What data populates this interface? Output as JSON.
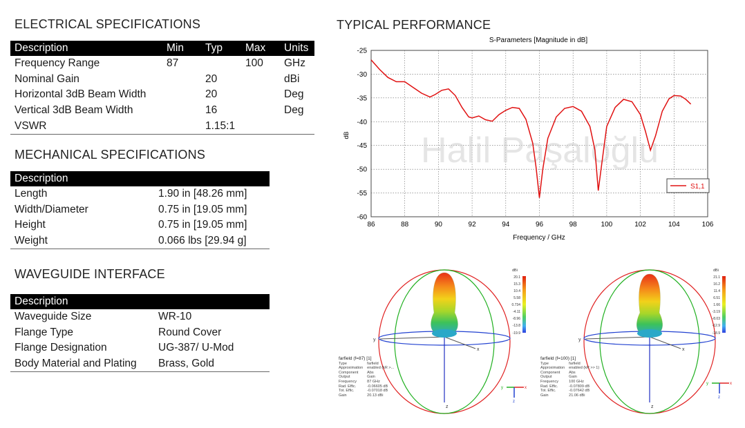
{
  "electrical": {
    "title": "ELECTRICAL SPECIFICATIONS",
    "headers": [
      "Description",
      "Min",
      "Typ",
      "Max",
      "Units"
    ],
    "rows": [
      [
        "Frequency Range",
        "87",
        "",
        "100",
        "GHz"
      ],
      [
        "Nominal Gain",
        "",
        "20",
        "",
        "dBi"
      ],
      [
        "Horizontal 3dB Beam Width",
        "",
        "20",
        "",
        "Deg"
      ],
      [
        "Vertical 3dB Beam Width",
        "",
        "16",
        "",
        "Deg"
      ],
      [
        "VSWR",
        "",
        "1.15:1",
        "",
        ""
      ]
    ]
  },
  "mechanical": {
    "title": "MECHANICAL SPECIFICATIONS",
    "header": "Description",
    "rows": [
      [
        "Length",
        "1.90 in [48.26 mm]"
      ],
      [
        "Width/Diameter",
        "0.75 in [19.05 mm]"
      ],
      [
        "Height",
        "0.75 in [19.05 mm]"
      ],
      [
        "Weight",
        "0.066 lbs [29.94 g]"
      ]
    ]
  },
  "waveguide": {
    "title": "WAVEGUIDE INTERFACE",
    "header": "Description",
    "rows": [
      [
        "Waveguide Size",
        "WR-10"
      ],
      [
        "Flange Type",
        "Round Cover"
      ],
      [
        "Flange Designation",
        "UG-387/ U-Mod"
      ],
      [
        "Body Material and Plating",
        "Brass, Gold"
      ]
    ]
  },
  "performance": {
    "title": "TYPICAL PERFORMANCE",
    "watermark": "Halil Paşaloğlu"
  },
  "chart_data": {
    "type": "line",
    "title": "S-Parameters [Magnitude in dB]",
    "xlabel": "Frequency / GHz",
    "ylabel": "dB",
    "xlim": [
      86,
      106
    ],
    "ylim": [
      -60,
      -25
    ],
    "xticks": [
      "86",
      "88",
      "90",
      "92",
      "94",
      "96",
      "98",
      "100",
      "102",
      "104",
      "106"
    ],
    "yticks": [
      "-25",
      "-30",
      "-35",
      "-40",
      "-45",
      "-50",
      "-55",
      "-60"
    ],
    "grid": true,
    "legend_position": "right",
    "series_color": "#e01010",
    "series": [
      {
        "name": "S1,1",
        "x": [
          86.0,
          86.5,
          87.0,
          87.5,
          88.0,
          88.5,
          89.0,
          89.5,
          89.8,
          90.2,
          90.6,
          91.0,
          91.4,
          91.8,
          92.0,
          92.4,
          92.8,
          93.2,
          93.6,
          94.0,
          94.4,
          94.8,
          95.2,
          95.6,
          95.8,
          96.0,
          96.2,
          96.5,
          97.0,
          97.5,
          98.0,
          98.5,
          99.0,
          99.3,
          99.5,
          99.7,
          100.0,
          100.5,
          101.0,
          101.5,
          102.0,
          102.3,
          102.6,
          102.9,
          103.3,
          103.7,
          104.0,
          104.4,
          104.7,
          105.0
        ],
        "y": [
          -27.0,
          -29.0,
          -30.7,
          -31.6,
          -31.6,
          -32.8,
          -34.0,
          -34.8,
          -34.3,
          -33.4,
          -33.1,
          -34.5,
          -37.0,
          -39.0,
          -39.2,
          -38.8,
          -39.6,
          -39.9,
          -38.5,
          -37.6,
          -37.0,
          -37.2,
          -39.5,
          -44.5,
          -49.5,
          -56.0,
          -50.0,
          -43.5,
          -39.0,
          -37.2,
          -36.8,
          -37.8,
          -41.0,
          -46.0,
          -54.5,
          -49.0,
          -41.0,
          -37.0,
          -35.3,
          -35.8,
          -38.5,
          -42.0,
          -46.0,
          -43.0,
          -37.8,
          -35.2,
          -34.5,
          -34.6,
          -35.3,
          -36.3
        ]
      }
    ]
  },
  "pattern_left": {
    "label": "farfield (f=87) [1]",
    "rows": [
      [
        "Type",
        "farfield"
      ],
      [
        "Approximation",
        "enabled (kR >..."
      ],
      [
        "Component",
        "Abs"
      ],
      [
        "Output",
        "Gain"
      ],
      [
        "Frequency",
        "87 GHz"
      ],
      [
        "Rad. Effic.",
        "-0.06605 dB"
      ],
      [
        "Tot. Effic.",
        "-0.07018 dB"
      ],
      [
        "Gain",
        "20.13 dBi"
      ]
    ],
    "unit": "dBi",
    "scale": [
      "20.1",
      "15.3",
      "10.4",
      "5.58",
      "0.734",
      "-4.11",
      "-8.96",
      "-13.8",
      "-19.9"
    ]
  },
  "pattern_right": {
    "label": "farfield (f=100) [1]",
    "rows": [
      [
        "Type",
        "farfield"
      ],
      [
        "Approximation",
        "enabled (kR >> 1)"
      ],
      [
        "Component",
        "Abs"
      ],
      [
        "Output",
        "Gain"
      ],
      [
        "Frequency",
        "100 GHz"
      ],
      [
        "Rad. Effic.",
        "-0.07809 dB"
      ],
      [
        "Tot. Effic.",
        "-0.07642 dB"
      ],
      [
        "Gain",
        "21.06 dBi"
      ]
    ],
    "unit": "dBi",
    "scale": [
      "21.1",
      "16.2",
      "11.4",
      "6.51",
      "1.66",
      "-3.19",
      "-8.03",
      "-12.9",
      "-18.9"
    ]
  },
  "axes_labels": {
    "x": "x",
    "y": "y",
    "z": "z"
  }
}
